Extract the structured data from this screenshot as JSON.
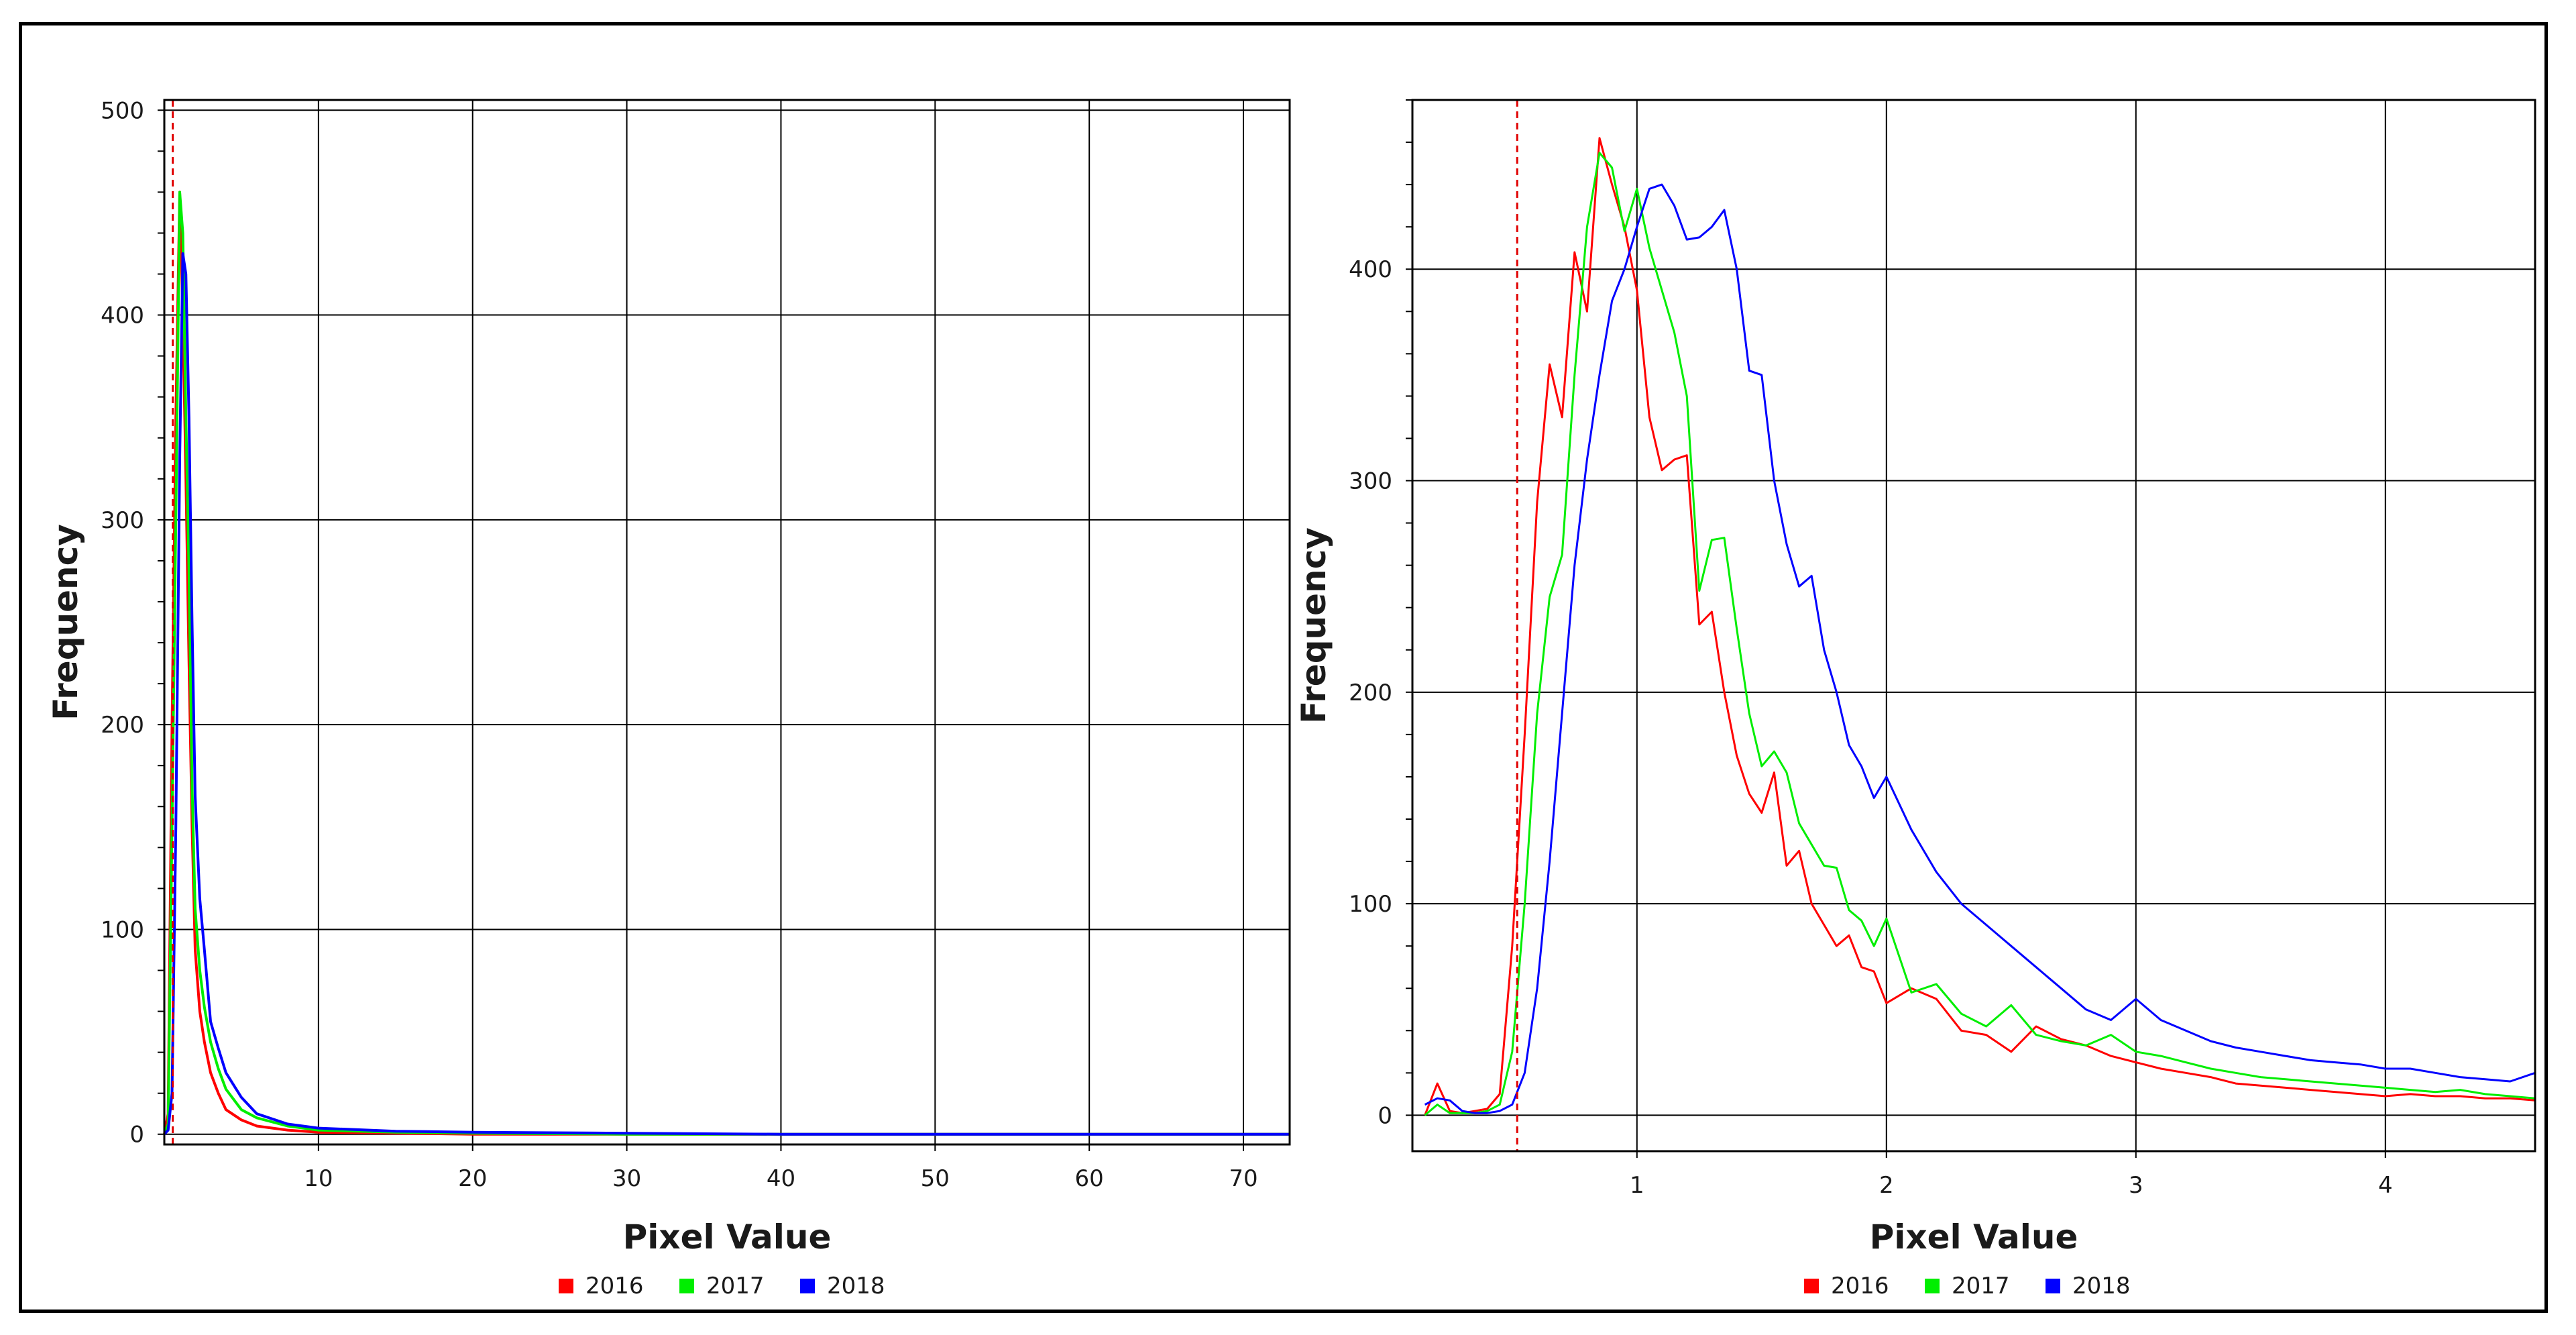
{
  "chart_data": [
    {
      "type": "line",
      "xlabel": "Pixel Value",
      "ylabel": "Frequency",
      "xlim": [
        0,
        73
      ],
      "ylim": [
        -5,
        505
      ],
      "x_ticks": [
        10,
        20,
        30,
        40,
        50,
        60,
        70
      ],
      "y_ticks": [
        0,
        100,
        200,
        300,
        400,
        500
      ],
      "grid": true,
      "legend_position": "bottom-center",
      "reference_line": {
        "x": 0.55,
        "style": "dashed",
        "color": "#e00000"
      },
      "series": [
        {
          "name": "2016",
          "color": "#ff0000",
          "x": [
            0.0,
            0.25,
            0.5,
            0.75,
            1.0,
            1.2,
            1.4,
            1.6,
            1.8,
            2.0,
            2.3,
            2.6,
            3.0,
            3.5,
            4.0,
            5.0,
            6.0,
            8.0,
            10.0,
            15.0,
            20.0,
            30.0,
            40.0,
            50.0,
            60.0,
            73.0
          ],
          "values": [
            0,
            10,
            200,
            350,
            460,
            400,
            320,
            230,
            150,
            90,
            60,
            45,
            30,
            20,
            12,
            7,
            4,
            2,
            1,
            0.5,
            0,
            0,
            0,
            0,
            0,
            0
          ]
        },
        {
          "name": "2017",
          "color": "#00ee00",
          "x": [
            0.0,
            0.25,
            0.5,
            0.75,
            1.0,
            1.2,
            1.4,
            1.6,
            1.8,
            2.0,
            2.3,
            2.6,
            3.0,
            3.5,
            4.0,
            5.0,
            6.0,
            8.0,
            10.0,
            15.0,
            20.0,
            30.0,
            40.0,
            50.0,
            60.0,
            73.0
          ],
          "values": [
            0,
            5,
            150,
            300,
            460,
            440,
            350,
            275,
            170,
            110,
            80,
            62,
            45,
            32,
            22,
            12,
            8,
            4,
            2,
            1,
            0.5,
            0,
            0,
            0,
            0,
            0
          ]
        },
        {
          "name": "2018",
          "color": "#0000ff",
          "x": [
            0.0,
            0.25,
            0.5,
            0.75,
            1.0,
            1.2,
            1.4,
            1.6,
            1.8,
            2.0,
            2.3,
            2.6,
            3.0,
            3.5,
            4.0,
            5.0,
            6.0,
            8.0,
            10.0,
            15.0,
            20.0,
            30.0,
            40.0,
            50.0,
            60.0,
            73.0
          ],
          "values": [
            0,
            2,
            20,
            150,
            330,
            430,
            420,
            350,
            250,
            165,
            115,
            90,
            55,
            42,
            30,
            18,
            10,
            5,
            3,
            1.5,
            1,
            0.5,
            0,
            0,
            0,
            0
          ]
        }
      ]
    },
    {
      "type": "line",
      "xlabel": "Pixel Value",
      "ylabel": "Frequency",
      "xlim": [
        0.1,
        4.6
      ],
      "ylim": [
        -17,
        480
      ],
      "x_ticks": [
        1,
        2,
        3,
        4
      ],
      "y_ticks": [
        0,
        100,
        200,
        300,
        400
      ],
      "grid": true,
      "legend_position": "bottom-center",
      "reference_line": {
        "x": 0.52,
        "style": "dashed",
        "color": "#e00000"
      },
      "series": [
        {
          "name": "2016",
          "color": "#ff0000",
          "x": [
            0.15,
            0.2,
            0.25,
            0.3,
            0.35,
            0.4,
            0.45,
            0.5,
            0.55,
            0.6,
            0.65,
            0.7,
            0.75,
            0.8,
            0.85,
            0.9,
            0.95,
            1.0,
            1.05,
            1.1,
            1.15,
            1.2,
            1.25,
            1.3,
            1.35,
            1.4,
            1.45,
            1.5,
            1.55,
            1.6,
            1.65,
            1.7,
            1.75,
            1.8,
            1.85,
            1.9,
            1.95,
            2.0,
            2.1,
            2.2,
            2.3,
            2.4,
            2.5,
            2.6,
            2.7,
            2.8,
            2.9,
            3.0,
            3.1,
            3.2,
            3.3,
            3.4,
            3.5,
            3.6,
            3.7,
            3.8,
            3.9,
            4.0,
            4.1,
            4.2,
            4.3,
            4.4,
            4.5,
            4.6
          ],
          "values": [
            0,
            15,
            2,
            1,
            2,
            3,
            10,
            80,
            180,
            290,
            355,
            330,
            408,
            380,
            462,
            440,
            420,
            390,
            330,
            305,
            310,
            312,
            232,
            238,
            200,
            170,
            152,
            143,
            162,
            118,
            125,
            100,
            90,
            80,
            85,
            70,
            68,
            53,
            60,
            55,
            40,
            38,
            30,
            42,
            36,
            33,
            28,
            25,
            22,
            20,
            18,
            15,
            14,
            13,
            12,
            11,
            10,
            9,
            10,
            9,
            9,
            8,
            8,
            7
          ]
        },
        {
          "name": "2017",
          "color": "#00ee00",
          "x": [
            0.15,
            0.2,
            0.25,
            0.3,
            0.35,
            0.4,
            0.45,
            0.5,
            0.55,
            0.6,
            0.65,
            0.7,
            0.75,
            0.8,
            0.85,
            0.9,
            0.95,
            1.0,
            1.05,
            1.1,
            1.15,
            1.2,
            1.25,
            1.3,
            1.35,
            1.4,
            1.45,
            1.5,
            1.55,
            1.6,
            1.65,
            1.7,
            1.75,
            1.8,
            1.85,
            1.9,
            1.95,
            2.0,
            2.1,
            2.2,
            2.3,
            2.4,
            2.5,
            2.6,
            2.7,
            2.8,
            2.9,
            3.0,
            3.1,
            3.2,
            3.3,
            3.4,
            3.5,
            3.6,
            3.7,
            3.8,
            3.9,
            4.0,
            4.1,
            4.2,
            4.3,
            4.4,
            4.5,
            4.6
          ],
          "values": [
            0,
            5,
            1,
            1,
            1,
            2,
            5,
            30,
            100,
            190,
            245,
            265,
            350,
            420,
            455,
            448,
            418,
            438,
            410,
            390,
            370,
            340,
            248,
            272,
            273,
            230,
            190,
            165,
            172,
            162,
            138,
            128,
            118,
            117,
            97,
            92,
            80,
            93,
            58,
            62,
            48,
            42,
            52,
            38,
            35,
            33,
            38,
            30,
            28,
            25,
            22,
            20,
            18,
            17,
            16,
            15,
            14,
            13,
            12,
            11,
            12,
            10,
            9,
            8
          ]
        },
        {
          "name": "2018",
          "color": "#0000ff",
          "x": [
            0.15,
            0.2,
            0.25,
            0.3,
            0.35,
            0.4,
            0.45,
            0.5,
            0.55,
            0.6,
            0.65,
            0.7,
            0.75,
            0.8,
            0.85,
            0.9,
            0.95,
            1.0,
            1.05,
            1.1,
            1.15,
            1.2,
            1.25,
            1.3,
            1.35,
            1.4,
            1.45,
            1.5,
            1.55,
            1.6,
            1.65,
            1.7,
            1.75,
            1.8,
            1.85,
            1.9,
            1.95,
            2.0,
            2.1,
            2.2,
            2.3,
            2.4,
            2.5,
            2.6,
            2.7,
            2.8,
            2.9,
            3.0,
            3.1,
            3.2,
            3.3,
            3.4,
            3.5,
            3.6,
            3.7,
            3.8,
            3.9,
            4.0,
            4.1,
            4.2,
            4.3,
            4.4,
            4.5,
            4.6
          ],
          "values": [
            5,
            8,
            7,
            2,
            1,
            1,
            2,
            5,
            20,
            60,
            120,
            190,
            260,
            310,
            350,
            385,
            400,
            420,
            438,
            440,
            430,
            414,
            415,
            420,
            428,
            400,
            352,
            350,
            300,
            270,
            250,
            255,
            220,
            200,
            175,
            165,
            150,
            160,
            135,
            115,
            100,
            90,
            80,
            70,
            60,
            50,
            45,
            55,
            45,
            40,
            35,
            32,
            30,
            28,
            26,
            25,
            24,
            22,
            22,
            20,
            18,
            17,
            16,
            20
          ]
        }
      ]
    }
  ]
}
